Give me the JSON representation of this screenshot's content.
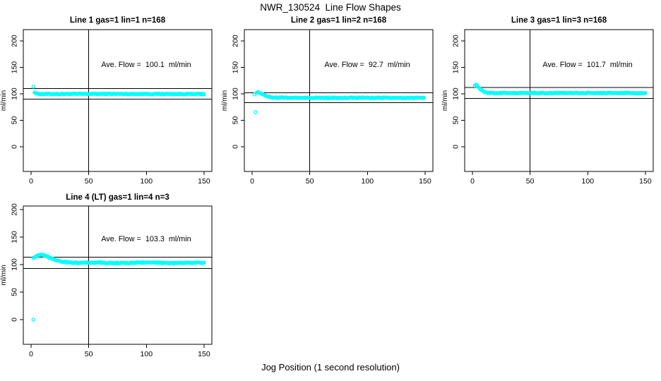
{
  "page": {
    "title": "NWR_130524  Line Flow Shapes",
    "xlabel": "Jog Position (1 second resolution)",
    "background": "#FFFFFF",
    "text_color": "#000000"
  },
  "chart_data": {
    "type": "scatter",
    "marker": {
      "shape": "open-circle",
      "color": "#00FFFF"
    },
    "axes": {
      "xticks": [
        0,
        50,
        100,
        150
      ],
      "yticks": [
        0,
        50,
        100,
        150,
        200
      ],
      "xlim": [
        0,
        150
      ],
      "ylim": [
        0,
        200
      ],
      "ylabel": "ml/min",
      "vline_x": 50,
      "grid": false
    },
    "plots": [
      {
        "title": "Line 1 gas=1 lin=1 n=168",
        "annotation": "Ave. Flow =  100.1  ml/min",
        "ave_flow": 100.1,
        "n": 168,
        "ref_lines": [
          110.1,
          90.1
        ],
        "isolated_points": [
          [
            2,
            113.5
          ]
        ],
        "band_anchors": [
          [
            3,
            103.2
          ],
          [
            4,
            101.3
          ],
          [
            5,
            100.4
          ],
          [
            6,
            100
          ],
          [
            8,
            99.8
          ],
          [
            12,
            99.7
          ],
          [
            30,
            99.8
          ],
          [
            60,
            99.9
          ],
          [
            100,
            99.8
          ],
          [
            150,
            99.6
          ]
        ],
        "band_x": [
          3,
          150
        ],
        "band_step": 0.885,
        "jitter": 0.8,
        "wobble": 0
      },
      {
        "title": "Line 2 gas=1 lin=2 n=168",
        "annotation": "Ave. Flow =  92.7  ml/min",
        "ave_flow": 92.7,
        "n": 168,
        "ref_lines": [
          102.0,
          83.4
        ],
        "isolated_points": [
          [
            2,
            99
          ],
          [
            3,
            65.5
          ]
        ],
        "band_anchors": [
          [
            4,
            102
          ],
          [
            5,
            103
          ],
          [
            6,
            103
          ],
          [
            7,
            102.3
          ],
          [
            8,
            100.8
          ],
          [
            10,
            98.2
          ],
          [
            12,
            96.2
          ],
          [
            15,
            94.2
          ],
          [
            18,
            93.2
          ],
          [
            22,
            92.8
          ],
          [
            30,
            92.5
          ],
          [
            60,
            92.5
          ],
          [
            100,
            92.5
          ],
          [
            150,
            92.4
          ]
        ],
        "band_x": [
          4,
          150
        ],
        "band_step": 0.885,
        "jitter": 0.8,
        "wobble": 0
      },
      {
        "title": "Line 3 gas=1 lin=3 n=168",
        "annotation": "Ave. Flow =  101.7  ml/min",
        "ave_flow": 101.7,
        "n": 168,
        "ref_lines": [
          111.9,
          91.5
        ],
        "isolated_points": [],
        "band_anchors": [
          [
            2,
            116
          ],
          [
            3,
            117.3
          ],
          [
            4,
            116.3
          ],
          [
            5,
            113.5
          ],
          [
            6,
            111
          ],
          [
            7,
            109
          ],
          [
            8,
            107
          ],
          [
            9,
            105.5
          ],
          [
            10,
            104.3
          ],
          [
            12,
            102.8
          ],
          [
            15,
            101.9
          ],
          [
            20,
            101.6
          ],
          [
            60,
            101.6
          ],
          [
            100,
            101.6
          ],
          [
            150,
            101.4
          ]
        ],
        "band_x": [
          2,
          150
        ],
        "band_step": 0.885,
        "jitter": 0.8,
        "wobble": 0
      },
      {
        "title": "Line 4 (LT) gas=1 lin=4 n=3",
        "annotation": "Ave. Flow =  103.3  ml/min",
        "ave_flow": 103.3,
        "n": 3,
        "ref_lines": [
          113.6,
          93.0
        ],
        "isolated_points": [
          [
            2,
            0
          ],
          [
            2,
            112.5
          ]
        ],
        "band_anchors": [
          [
            3,
            112.8
          ],
          [
            4,
            114.8
          ],
          [
            5,
            116.3
          ],
          [
            6,
            117.2
          ],
          [
            8,
            117.6
          ],
          [
            10,
            117
          ],
          [
            12,
            115.6
          ],
          [
            15,
            113
          ],
          [
            18,
            110.4
          ],
          [
            22,
            108
          ],
          [
            26,
            106.2
          ],
          [
            30,
            105
          ],
          [
            35,
            104.2
          ],
          [
            40,
            103.7
          ],
          [
            50,
            103.3
          ],
          [
            70,
            103.2
          ],
          [
            100,
            103.3
          ],
          [
            130,
            103.1
          ],
          [
            150,
            103
          ]
        ],
        "band_x": [
          3,
          150
        ],
        "band_step": 0.885,
        "jitter": 1.0,
        "wobble": 0.5
      }
    ]
  }
}
